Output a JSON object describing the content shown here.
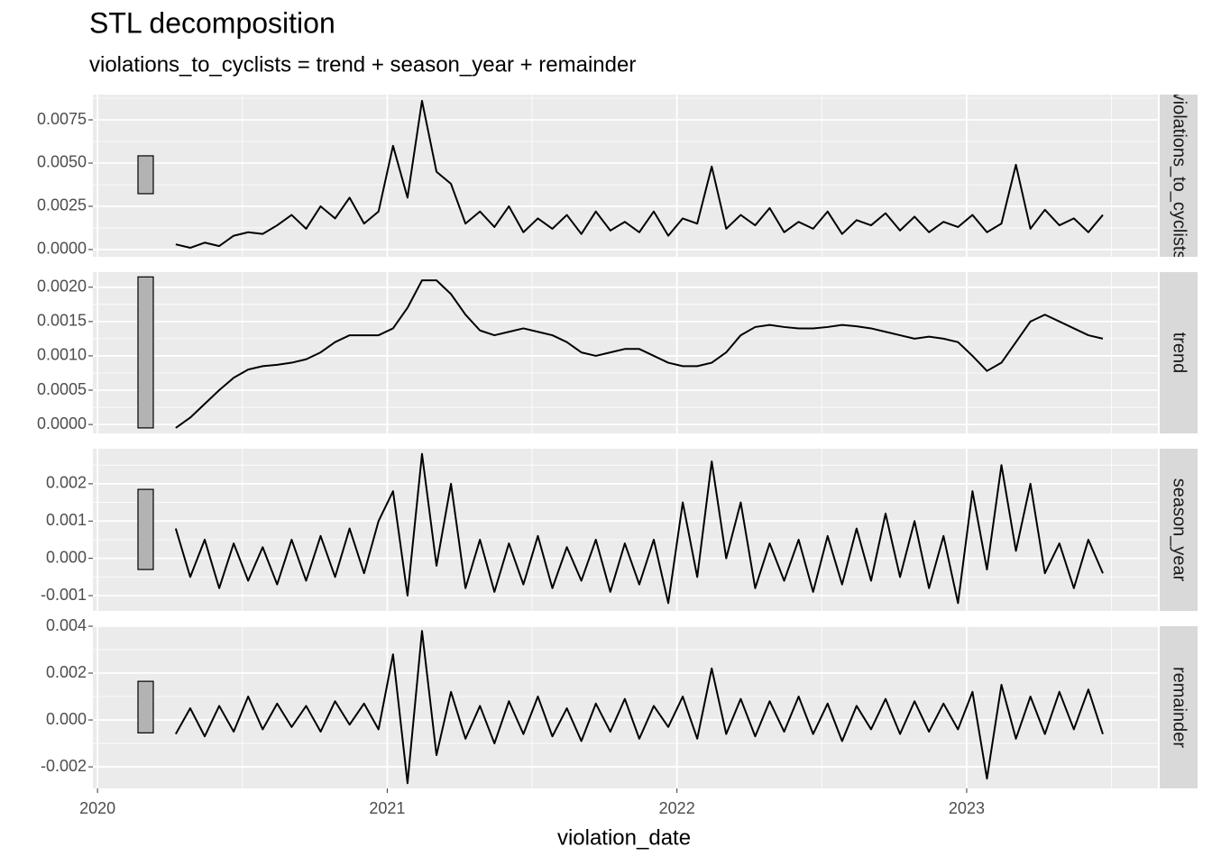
{
  "chart_data": [
    {
      "type": "line",
      "title": "STL decomposition",
      "subtitle": "violations_to_cyclists = trend + season_year + remainder",
      "strip": "violations_to_cyclists",
      "color": "#000000",
      "scale_bar_color": "#b3b3b3",
      "grid": true,
      "xlim": [
        2019.984,
        2023.66
      ],
      "xticks": [
        2020,
        2021,
        2022,
        2023
      ],
      "x_minor_ticks": [
        2020.5,
        2021.5,
        2022.5,
        2023.5
      ],
      "ylim": [
        -0.00042,
        0.00896
      ],
      "yticks": [
        {
          "value": 0,
          "label": "0.0000"
        },
        {
          "value": 0.0025,
          "label": "0.0025"
        },
        {
          "value": 0.005,
          "label": "0.0050"
        },
        {
          "value": 0.0075,
          "label": "0.0075"
        }
      ],
      "y_minor_ticks": [
        0.00125,
        0.00375,
        0.00625,
        0.00875
      ],
      "scale_bar": [
        0.00323,
        0.00542
      ],
      "x": [
        2020.27,
        2020.32,
        2020.37,
        2020.42,
        2020.47,
        2020.52,
        2020.57,
        2020.62,
        2020.67,
        2020.72,
        2020.77,
        2020.82,
        2020.87,
        2020.92,
        2020.97,
        2021.02,
        2021.07,
        2021.12,
        2021.17,
        2021.22,
        2021.27,
        2021.32,
        2021.37,
        2021.42,
        2021.47,
        2021.52,
        2021.57,
        2021.62,
        2021.67,
        2021.72,
        2021.77,
        2021.82,
        2021.87,
        2021.92,
        2021.97,
        2022.02,
        2022.07,
        2022.12,
        2022.17,
        2022.22,
        2022.27,
        2022.32,
        2022.37,
        2022.42,
        2022.47,
        2022.52,
        2022.57,
        2022.62,
        2022.67,
        2022.72,
        2022.77,
        2022.82,
        2022.87,
        2022.92,
        2022.97,
        2023.02,
        2023.07,
        2023.12,
        2023.17,
        2023.22,
        2023.27,
        2023.32,
        2023.37,
        2023.42,
        2023.47
      ],
      "values": [
        0.0003,
        0.0001,
        0.0004,
        0.0002,
        0.0008,
        0.001,
        0.0009,
        0.0014,
        0.002,
        0.0012,
        0.0025,
        0.0018,
        0.003,
        0.0015,
        0.0022,
        0.006,
        0.003,
        0.0086,
        0.0045,
        0.0038,
        0.0015,
        0.0022,
        0.0013,
        0.0025,
        0.001,
        0.0018,
        0.0012,
        0.002,
        0.0009,
        0.0022,
        0.0011,
        0.0016,
        0.001,
        0.0022,
        0.0008,
        0.0018,
        0.0015,
        0.0048,
        0.0012,
        0.002,
        0.0014,
        0.0024,
        0.001,
        0.0016,
        0.0012,
        0.0022,
        0.0009,
        0.0017,
        0.0014,
        0.0021,
        0.0011,
        0.0019,
        0.001,
        0.0016,
        0.0013,
        0.002,
        0.001,
        0.0015,
        0.0049,
        0.0012,
        0.0023,
        0.0014,
        0.0018,
        0.001,
        0.002
      ]
    },
    {
      "type": "line",
      "strip": "trend",
      "color": "#000000",
      "scale_bar_color": "#b3b3b3",
      "grid": true,
      "xlim": [
        2019.984,
        2023.66
      ],
      "xticks": [
        2020,
        2021,
        2022,
        2023
      ],
      "x_minor_ticks": [
        2020.5,
        2021.5,
        2022.5,
        2023.5
      ],
      "ylim": [
        -0.00013,
        0.00222
      ],
      "yticks": [
        {
          "value": 0,
          "label": "0.0000"
        },
        {
          "value": 0.0005,
          "label": "0.0005"
        },
        {
          "value": 0.001,
          "label": "0.0010"
        },
        {
          "value": 0.0015,
          "label": "0.0015"
        },
        {
          "value": 0.002,
          "label": "0.0020"
        }
      ],
      "y_minor_ticks": [
        0.00025,
        0.00075,
        0.00125,
        0.00175
      ],
      "scale_bar": [
        -5e-05,
        0.00215
      ],
      "x": [
        2020.27,
        2020.32,
        2020.37,
        2020.42,
        2020.47,
        2020.52,
        2020.57,
        2020.62,
        2020.67,
        2020.72,
        2020.77,
        2020.82,
        2020.87,
        2020.92,
        2020.97,
        2021.02,
        2021.07,
        2021.12,
        2021.17,
        2021.22,
        2021.27,
        2021.32,
        2021.37,
        2021.42,
        2021.47,
        2021.52,
        2021.57,
        2021.62,
        2021.67,
        2021.72,
        2021.77,
        2021.82,
        2021.87,
        2021.92,
        2021.97,
        2022.02,
        2022.07,
        2022.12,
        2022.17,
        2022.22,
        2022.27,
        2022.32,
        2022.37,
        2022.42,
        2022.47,
        2022.52,
        2022.57,
        2022.62,
        2022.67,
        2022.72,
        2022.77,
        2022.82,
        2022.87,
        2022.92,
        2022.97,
        2023.02,
        2023.07,
        2023.12,
        2023.17,
        2023.22,
        2023.27,
        2023.32,
        2023.37,
        2023.42,
        2023.47
      ],
      "values": [
        -5e-05,
        0.0001,
        0.0003,
        0.0005,
        0.00068,
        0.0008,
        0.00085,
        0.00087,
        0.0009,
        0.00095,
        0.00105,
        0.0012,
        0.0013,
        0.0013,
        0.0013,
        0.0014,
        0.0017,
        0.0021,
        0.0021,
        0.0019,
        0.0016,
        0.00137,
        0.0013,
        0.00135,
        0.0014,
        0.00135,
        0.0013,
        0.0012,
        0.00105,
        0.001,
        0.00105,
        0.0011,
        0.0011,
        0.001,
        0.0009,
        0.00085,
        0.00085,
        0.0009,
        0.00105,
        0.0013,
        0.00142,
        0.00145,
        0.00142,
        0.0014,
        0.0014,
        0.00142,
        0.00145,
        0.00143,
        0.0014,
        0.00135,
        0.0013,
        0.00125,
        0.00128,
        0.00125,
        0.0012,
        0.001,
        0.00078,
        0.0009,
        0.0012,
        0.0015,
        0.0016,
        0.0015,
        0.0014,
        0.0013,
        0.00125
      ]
    },
    {
      "type": "line",
      "strip": "season_year",
      "color": "#000000",
      "scale_bar_color": "#b3b3b3",
      "grid": true,
      "xlim": [
        2019.984,
        2023.66
      ],
      "xticks": [
        2020,
        2021,
        2022,
        2023
      ],
      "x_minor_ticks": [
        2020.5,
        2021.5,
        2022.5,
        2023.5
      ],
      "ylim": [
        -0.00141,
        0.00294
      ],
      "yticks": [
        {
          "value": -0.001,
          "label": "-0.001"
        },
        {
          "value": 0,
          "label": "0.000"
        },
        {
          "value": 0.001,
          "label": "0.001"
        },
        {
          "value": 0.002,
          "label": "0.002"
        }
      ],
      "y_minor_ticks": [
        -0.0005,
        0.0005,
        0.0015,
        0.0025
      ],
      "scale_bar": [
        -0.0003,
        0.00185
      ],
      "x": [
        2020.27,
        2020.32,
        2020.37,
        2020.42,
        2020.47,
        2020.52,
        2020.57,
        2020.62,
        2020.67,
        2020.72,
        2020.77,
        2020.82,
        2020.87,
        2020.92,
        2020.97,
        2021.02,
        2021.07,
        2021.12,
        2021.17,
        2021.22,
        2021.27,
        2021.32,
        2021.37,
        2021.42,
        2021.47,
        2021.52,
        2021.57,
        2021.62,
        2021.67,
        2021.72,
        2021.77,
        2021.82,
        2021.87,
        2021.92,
        2021.97,
        2022.02,
        2022.07,
        2022.12,
        2022.17,
        2022.22,
        2022.27,
        2022.32,
        2022.37,
        2022.42,
        2022.47,
        2022.52,
        2022.57,
        2022.62,
        2022.67,
        2022.72,
        2022.77,
        2022.82,
        2022.87,
        2022.92,
        2022.97,
        2023.02,
        2023.07,
        2023.12,
        2023.17,
        2023.22,
        2023.27,
        2023.32,
        2023.37,
        2023.42,
        2023.47
      ],
      "values": [
        0.0008,
        -0.0005,
        0.0005,
        -0.0008,
        0.0004,
        -0.0006,
        0.0003,
        -0.0007,
        0.0005,
        -0.0006,
        0.0006,
        -0.0005,
        0.0008,
        -0.0004,
        0.001,
        0.0018,
        -0.001,
        0.0028,
        -0.0002,
        0.002,
        -0.0008,
        0.0005,
        -0.0009,
        0.0004,
        -0.0007,
        0.0006,
        -0.0008,
        0.0003,
        -0.0006,
        0.0005,
        -0.0009,
        0.0004,
        -0.0007,
        0.0005,
        -0.0012,
        0.0015,
        -0.0005,
        0.0026,
        0,
        0.0015,
        -0.0008,
        0.0004,
        -0.0006,
        0.0005,
        -0.0009,
        0.0006,
        -0.0007,
        0.0008,
        -0.0006,
        0.0012,
        -0.0005,
        0.001,
        -0.0008,
        0.0006,
        -0.0012,
        0.0018,
        -0.0003,
        0.0025,
        0.0002,
        0.002,
        -0.0004,
        0.0004,
        -0.0008,
        0.0005,
        -0.0004
      ]
    },
    {
      "type": "line",
      "strip": "remainder",
      "x_label": "violation_date",
      "color": "#000000",
      "scale_bar_color": "#b3b3b3",
      "grid": true,
      "xlim": [
        2019.984,
        2023.66
      ],
      "xticks": [
        2020,
        2021,
        2022,
        2023
      ],
      "x_minor_ticks": [
        2020.5,
        2021.5,
        2022.5,
        2023.5
      ],
      "ylim": [
        -0.00292,
        0.004
      ],
      "yticks": [
        {
          "value": -0.002,
          "label": "-0.002"
        },
        {
          "value": 0,
          "label": "0.000"
        },
        {
          "value": 0.002,
          "label": "0.002"
        },
        {
          "value": 0.004,
          "label": "0.004"
        }
      ],
      "y_minor_ticks": [
        -0.001,
        0.001,
        0.003
      ],
      "scale_bar": [
        -0.00055,
        0.00165
      ],
      "x": [
        2020.27,
        2020.32,
        2020.37,
        2020.42,
        2020.47,
        2020.52,
        2020.57,
        2020.62,
        2020.67,
        2020.72,
        2020.77,
        2020.82,
        2020.87,
        2020.92,
        2020.97,
        2021.02,
        2021.07,
        2021.12,
        2021.17,
        2021.22,
        2021.27,
        2021.32,
        2021.37,
        2021.42,
        2021.47,
        2021.52,
        2021.57,
        2021.62,
        2021.67,
        2021.72,
        2021.77,
        2021.82,
        2021.87,
        2021.92,
        2021.97,
        2022.02,
        2022.07,
        2022.12,
        2022.17,
        2022.22,
        2022.27,
        2022.32,
        2022.37,
        2022.42,
        2022.47,
        2022.52,
        2022.57,
        2022.62,
        2022.67,
        2022.72,
        2022.77,
        2022.82,
        2022.87,
        2022.92,
        2022.97,
        2023.02,
        2023.07,
        2023.12,
        2023.17,
        2023.22,
        2023.27,
        2023.32,
        2023.37,
        2023.42,
        2023.47
      ],
      "values": [
        -0.0006,
        0.0005,
        -0.0007,
        0.0006,
        -0.0005,
        0.001,
        -0.0004,
        0.0007,
        -0.0003,
        0.0006,
        -0.0005,
        0.0008,
        -0.0002,
        0.0007,
        -0.0004,
        0.0028,
        -0.0027,
        0.0038,
        -0.0015,
        0.0012,
        -0.0008,
        0.0006,
        -0.001,
        0.0008,
        -0.0006,
        0.001,
        -0.0007,
        0.0005,
        -0.0009,
        0.0007,
        -0.0005,
        0.0009,
        -0.0008,
        0.0006,
        -0.0003,
        0.001,
        -0.0008,
        0.0022,
        -0.0006,
        0.0009,
        -0.0007,
        0.0008,
        -0.0005,
        0.001,
        -0.0006,
        0.0007,
        -0.0009,
        0.0006,
        -0.0004,
        0.0009,
        -0.0006,
        0.0008,
        -0.0005,
        0.0007,
        -0.0004,
        0.0012,
        -0.0025,
        0.0015,
        -0.0008,
        0.001,
        -0.0006,
        0.0012,
        -0.0004,
        0.0013,
        -0.0006
      ]
    }
  ]
}
